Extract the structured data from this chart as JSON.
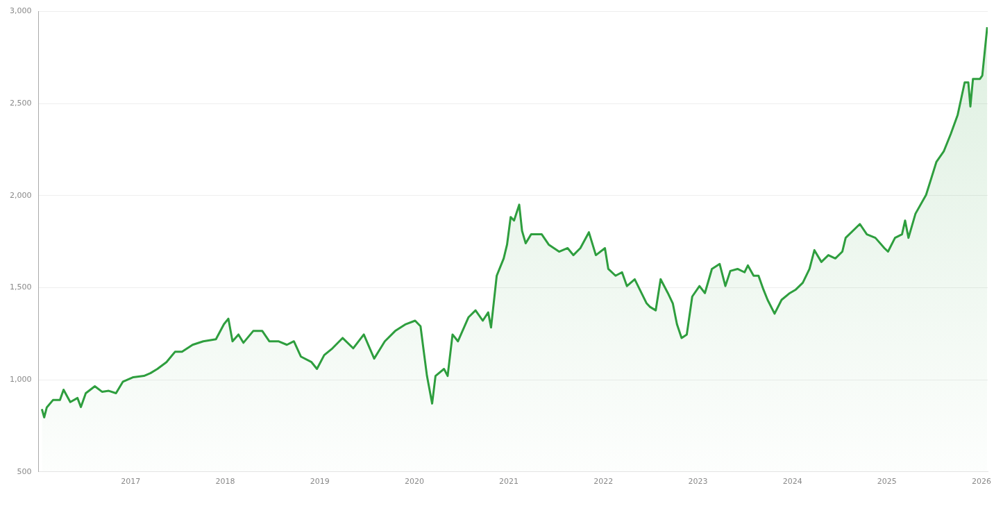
{
  "chart_data": {
    "type": "area",
    "x": [
      "2016-01-23",
      "2016-02-01",
      "2016-02-11",
      "2016-03-06",
      "2016-04-02",
      "2016-04-16",
      "2016-05-12",
      "2016-06-09",
      "2016-06-22",
      "2016-07-11",
      "2016-08-15",
      "2016-09-12",
      "2016-10-08",
      "2016-11-05",
      "2016-12-02",
      "2017-01-11",
      "2017-02-21",
      "2017-03-18",
      "2017-04-14",
      "2017-05-19",
      "2017-06-21",
      "2017-07-18",
      "2017-08-28",
      "2017-10-08",
      "2017-11-26",
      "2017-12-27",
      "2018-01-13",
      "2018-01-29",
      "2018-02-21",
      "2018-03-12",
      "2018-04-19",
      "2018-05-24",
      "2018-06-20",
      "2018-07-25",
      "2018-08-27",
      "2018-09-23",
      "2018-10-20",
      "2018-11-30",
      "2018-12-21",
      "2019-01-18",
      "2019-02-19",
      "2019-03-30",
      "2019-05-10",
      "2019-06-20",
      "2019-07-30",
      "2019-09-09",
      "2019-10-19",
      "2019-11-29",
      "2020-01-04",
      "2020-01-25",
      "2020-02-05",
      "2020-02-19",
      "2020-03-10",
      "2020-03-23",
      "2020-04-25",
      "2020-05-09",
      "2020-05-28",
      "2020-06-18",
      "2020-07-29",
      "2020-08-25",
      "2020-09-22",
      "2020-10-13",
      "2020-10-24",
      "2020-11-15",
      "2020-12-12",
      "2020-12-25",
      "2021-01-08",
      "2021-01-21",
      "2021-02-10",
      "2021-02-21",
      "2021-03-07",
      "2021-03-28",
      "2021-05-08",
      "2021-06-04",
      "2021-07-14",
      "2021-08-16",
      "2021-09-07",
      "2021-10-04",
      "2021-11-06",
      "2021-12-03",
      "2022-01-07",
      "2022-01-20",
      "2022-02-17",
      "2022-03-14",
      "2022-04-02",
      "2022-05-02",
      "2022-06-17",
      "2022-06-30",
      "2022-07-22",
      "2022-08-10",
      "2022-09-07",
      "2022-09-26",
      "2022-10-12",
      "2022-10-30",
      "2022-11-19",
      "2022-12-10",
      "2023-01-07",
      "2023-01-28",
      "2023-02-24",
      "2023-03-26",
      "2023-04-17",
      "2023-05-06",
      "2023-06-03",
      "2023-06-30",
      "2023-07-13",
      "2023-08-04",
      "2023-08-23",
      "2023-09-11",
      "2023-09-27",
      "2023-10-24",
      "2023-11-20",
      "2023-12-22",
      "2024-01-14",
      "2024-02-10",
      "2024-03-07",
      "2024-03-26",
      "2024-04-22",
      "2024-05-19",
      "2024-06-15",
      "2024-07-12",
      "2024-07-25",
      "2024-09-18",
      "2024-10-15",
      "2024-11-17",
      "2024-12-22",
      "2025-01-05",
      "2025-02-01",
      "2025-02-28",
      "2025-03-12",
      "2025-03-25",
      "2025-04-21",
      "2025-06-01",
      "2025-07-11",
      "2025-08-08",
      "2025-09-04",
      "2025-10-01",
      "2025-10-28",
      "2025-11-11",
      "2025-11-19",
      "2025-11-29",
      "2025-12-26",
      "2026-01-04",
      "2026-01-23"
    ],
    "series": [
      {
        "color": "#2e9e3e",
        "values": [
          841,
          796,
          850,
          890,
          890,
          946,
          879,
          901,
          852,
          927,
          965,
          935,
          940,
          927,
          990,
          1014,
          1021,
          1036,
          1059,
          1096,
          1152,
          1152,
          1190,
          1209,
          1220,
          1302,
          1332,
          1209,
          1246,
          1201,
          1265,
          1265,
          1209,
          1209,
          1190,
          1209,
          1126,
          1096,
          1059,
          1134,
          1171,
          1227,
          1171,
          1246,
          1115,
          1209,
          1265,
          1302,
          1321,
          1291,
          1171,
          1021,
          871,
          1021,
          1059,
          1021,
          1246,
          1209,
          1340,
          1377,
          1321,
          1366,
          1284,
          1565,
          1659,
          1734,
          1884,
          1865,
          1951,
          1809,
          1741,
          1790,
          1790,
          1734,
          1696,
          1715,
          1677,
          1715,
          1801,
          1677,
          1715,
          1602,
          1565,
          1584,
          1509,
          1546,
          1415,
          1396,
          1377,
          1546,
          1471,
          1415,
          1302,
          1227,
          1246,
          1452,
          1509,
          1471,
          1602,
          1629,
          1509,
          1591,
          1602,
          1584,
          1621,
          1565,
          1565,
          1490,
          1434,
          1359,
          1434,
          1471,
          1490,
          1527,
          1602,
          1704,
          1640,
          1677,
          1659,
          1696,
          1771,
          1846,
          1790,
          1771,
          1715,
          1696,
          1771,
          1790,
          1865,
          1771,
          1902,
          2004,
          2184,
          2240,
          2334,
          2439,
          2615,
          2615,
          2484,
          2634,
          2634,
          2652,
          2915
        ]
      }
    ],
    "xlim": [
      "2016-01-10",
      "2026-01-25"
    ],
    "xticks": [
      "2017",
      "2018",
      "2019",
      "2020",
      "2021",
      "2022",
      "2023",
      "2024",
      "2025",
      "2026"
    ],
    "ylim": [
      500,
      3000
    ],
    "yticks": [
      500,
      {
        "value": 1000,
        "label": "1,000"
      },
      {
        "value": 1500,
        "label": "1,500"
      },
      {
        "value": 2000,
        "label": "2,000"
      },
      {
        "value": 2500,
        "label": "2,500"
      },
      {
        "value": 3000,
        "label": "3,000"
      }
    ],
    "grid": "y",
    "legend": false,
    "marker": "none",
    "line_style": "solid"
  }
}
